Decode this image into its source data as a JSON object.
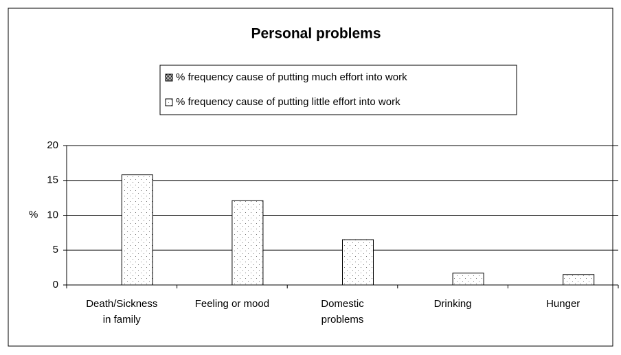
{
  "chart_data": {
    "type": "bar",
    "title": "Personal problems",
    "categories": [
      "Death/Sickness\nin family",
      "Feeling or mood",
      "Domestic\nproblems",
      "Drinking",
      "Hunger"
    ],
    "series": [
      {
        "name": "% frequency cause of putting much effort into work",
        "color": "#000000",
        "values": [
          0,
          0,
          0,
          0,
          0
        ]
      },
      {
        "name": "% frequency cause of putting little effort into work",
        "color": "#ffffff",
        "values": [
          15.8,
          12.1,
          6.5,
          1.7,
          1.5
        ]
      }
    ],
    "ylabel": "%",
    "ylim": [
      0,
      20
    ],
    "yticks": [
      0,
      5,
      10,
      15,
      20
    ],
    "grid": true
  }
}
